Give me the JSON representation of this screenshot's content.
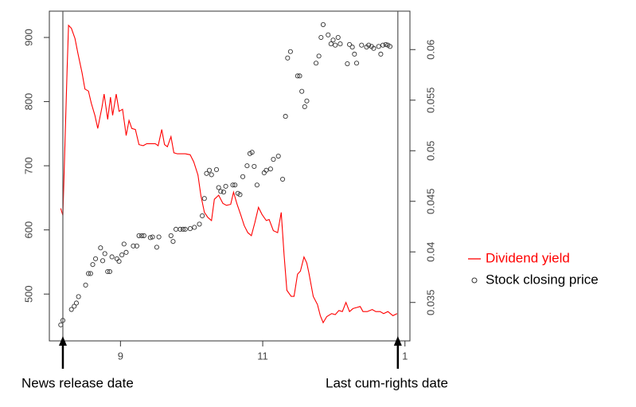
{
  "chart_data": {
    "type": "scatter",
    "xlim": [
      8,
      13.07
    ],
    "xticks": [
      9,
      11,
      {
        "value": 13,
        "label": "1"
      }
    ],
    "ylim": [
      427,
      941
    ],
    "yticks": [
      500,
      600,
      700,
      800,
      900
    ],
    "y2lim": [
      0.0312,
      0.0638
    ],
    "y2ticks": [
      0.035,
      0.04,
      0.045,
      0.05,
      0.055,
      0.06
    ],
    "series": [
      {
        "name": "Dividend yield",
        "type": "line",
        "axis": "y2",
        "color": "#ff0000",
        "x": [
          8.16,
          8.19,
          8.25,
          8.27,
          8.31,
          8.36,
          8.4,
          8.46,
          8.5,
          8.55,
          8.59,
          8.64,
          8.68,
          8.74,
          8.77,
          8.82,
          8.86,
          8.89,
          8.94,
          8.98,
          9.03,
          9.08,
          9.12,
          9.16,
          9.21,
          9.26,
          9.32,
          9.37,
          9.43,
          9.49,
          9.53,
          9.58,
          9.62,
          9.66,
          9.71,
          9.75,
          9.8,
          9.84,
          9.91,
          9.98,
          10.03,
          10.09,
          10.13,
          10.18,
          10.23,
          10.28,
          10.32,
          10.38,
          10.44,
          10.49,
          10.55,
          10.59,
          10.64,
          10.69,
          10.74,
          10.79,
          10.84,
          10.89,
          10.94,
          10.99,
          11.05,
          11.09,
          11.15,
          11.21,
          11.26,
          11.3,
          11.34,
          11.4,
          11.44,
          11.49,
          11.53,
          11.58,
          11.62,
          11.65,
          11.71,
          11.77,
          11.81,
          11.85,
          11.9,
          11.97,
          12.02,
          12.07,
          12.12,
          12.17,
          12.22,
          12.27,
          12.32,
          12.37,
          12.41,
          12.47,
          12.54,
          12.59,
          12.65,
          12.7,
          12.76,
          12.83,
          12.89
        ],
        "values": [
          0.0443,
          0.0436,
          0.058,
          0.0624,
          0.0621,
          0.0611,
          0.0597,
          0.0577,
          0.0561,
          0.0559,
          0.0547,
          0.0535,
          0.0522,
          0.0543,
          0.0556,
          0.0531,
          0.0553,
          0.0535,
          0.0556,
          0.0539,
          0.0541,
          0.0515,
          0.053,
          0.0522,
          0.0521,
          0.0506,
          0.0505,
          0.0507,
          0.0507,
          0.0507,
          0.0505,
          0.0521,
          0.0506,
          0.0504,
          0.0514,
          0.0498,
          0.0497,
          0.0497,
          0.0497,
          0.0496,
          0.0489,
          0.0476,
          0.0456,
          0.0439,
          0.0434,
          0.0431,
          0.0452,
          0.0456,
          0.0448,
          0.0446,
          0.0447,
          0.0459,
          0.0447,
          0.0437,
          0.0426,
          0.0419,
          0.0416,
          0.0429,
          0.0444,
          0.0437,
          0.0431,
          0.0432,
          0.0421,
          0.0419,
          0.0439,
          0.0397,
          0.0362,
          0.0356,
          0.0356,
          0.0378,
          0.0381,
          0.0395,
          0.0389,
          0.0379,
          0.0356,
          0.0348,
          0.0337,
          0.033,
          0.0336,
          0.0339,
          0.0338,
          0.0342,
          0.0341,
          0.035,
          0.0341,
          0.0344,
          0.0345,
          0.0346,
          0.0341,
          0.0341,
          0.0343,
          0.0341,
          0.0341,
          0.0339,
          0.0341,
          0.0337,
          0.0339
        ]
      },
      {
        "name": "Stock closing price",
        "type": "scatter",
        "color": "#333333",
        "x": [
          8.16,
          8.19,
          8.31,
          8.35,
          8.38,
          8.41,
          8.51,
          8.55,
          8.58,
          8.61,
          8.65,
          8.72,
          8.75,
          8.78,
          8.82,
          8.85,
          8.88,
          8.95,
          8.98,
          9.02,
          9.05,
          9.08,
          9.18,
          9.23,
          9.26,
          9.3,
          9.33,
          9.42,
          9.45,
          9.51,
          9.54,
          9.71,
          9.74,
          9.78,
          9.84,
          9.88,
          9.91,
          9.98,
          10.04,
          10.11,
          10.15,
          10.18,
          10.21,
          10.25,
          10.28,
          10.35,
          10.38,
          10.41,
          10.45,
          10.48,
          10.58,
          10.61,
          10.65,
          10.68,
          10.72,
          10.78,
          10.82,
          10.85,
          10.88,
          10.92,
          11.02,
          11.05,
          11.11,
          11.15,
          11.22,
          11.28,
          11.32,
          11.35,
          11.39,
          11.49,
          11.52,
          11.55,
          11.59,
          11.62,
          11.75,
          11.79,
          11.82,
          11.85,
          11.92,
          11.96,
          11.99,
          12.02,
          12.06,
          12.09,
          12.19,
          12.22,
          12.26,
          12.29,
          12.32,
          12.39,
          12.46,
          12.49,
          12.53,
          12.56,
          12.63,
          12.66,
          12.69,
          12.73,
          12.76,
          12.79
        ],
        "values": [
          452,
          459,
          476,
          481,
          486,
          496,
          514,
          532,
          532,
          546,
          555,
          572,
          552,
          563,
          535,
          535,
          558,
          555,
          551,
          561,
          578,
          565,
          575,
          575,
          591,
          591,
          591,
          588,
          589,
          573,
          589,
          591,
          582,
          601,
          601,
          601,
          601,
          602,
          604,
          609,
          622,
          649,
          688,
          693,
          686,
          694,
          666,
          660,
          659,
          668,
          670,
          670,
          657,
          655,
          683,
          700,
          719,
          721,
          699,
          670,
          689,
          693,
          695,
          710,
          715,
          679,
          777,
          868,
          878,
          840,
          840,
          816,
          792,
          801,
          860,
          871,
          900,
          920,
          904,
          890,
          896,
          888,
          900,
          890,
          859,
          889,
          885,
          874,
          860,
          888,
          885,
          888,
          886,
          883,
          886,
          874,
          888,
          889,
          888,
          886
        ]
      }
    ],
    "annotations": [
      {
        "text": "News release date",
        "x": 8.19
      },
      {
        "text": "Last cum-rights date",
        "x": 12.9
      }
    ],
    "legend": "right"
  }
}
